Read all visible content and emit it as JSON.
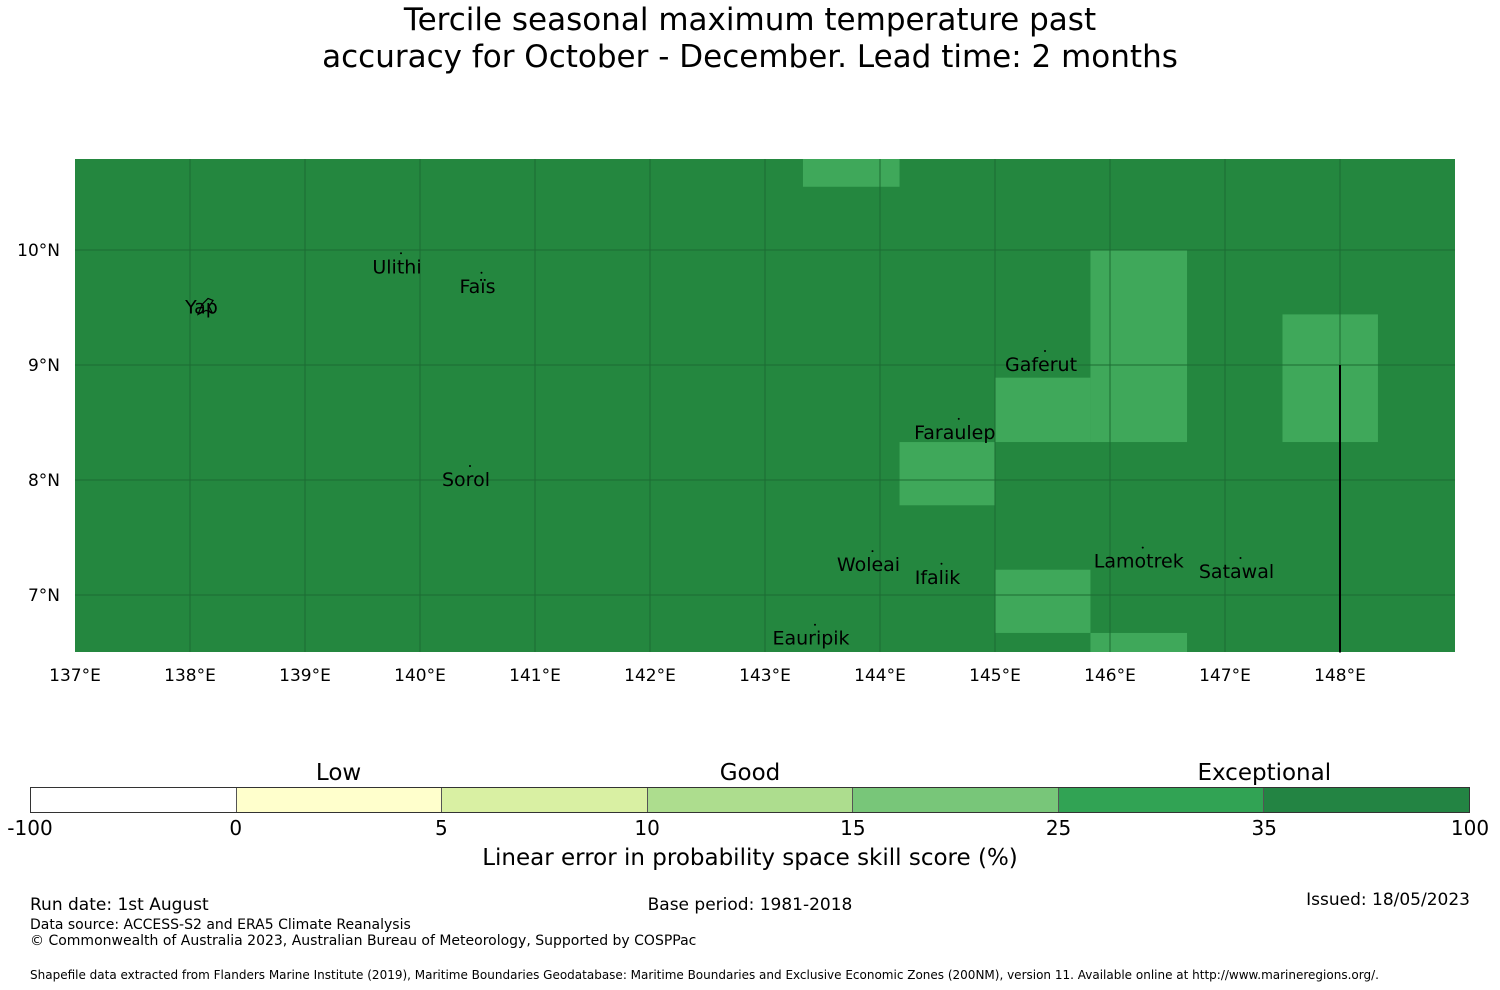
{
  "title": {
    "line1": "Tercile seasonal maximum temperature past",
    "line2": "accuracy for October - December. Lead time: 2 months"
  },
  "map": {
    "lon_range": [
      137,
      149
    ],
    "lat_range": [
      6.5,
      10.8
    ],
    "background_color": "#24873f",
    "highlight_color": "#3fa85a",
    "grid_color": "#1c6b33",
    "lon_ticks": [
      {
        "value": 137,
        "label": "137°E"
      },
      {
        "value": 138,
        "label": "138°E"
      },
      {
        "value": 139,
        "label": "139°E"
      },
      {
        "value": 140,
        "label": "140°E"
      },
      {
        "value": 141,
        "label": "141°E"
      },
      {
        "value": 142,
        "label": "142°E"
      },
      {
        "value": 143,
        "label": "143°E"
      },
      {
        "value": 144,
        "label": "144°E"
      },
      {
        "value": 145,
        "label": "145°E"
      },
      {
        "value": 146,
        "label": "146°E"
      },
      {
        "value": 147,
        "label": "147°E"
      },
      {
        "value": 148,
        "label": "148°E"
      }
    ],
    "lat_ticks": [
      {
        "value": 10,
        "label": "10°N"
      },
      {
        "value": 9,
        "label": "9°N"
      },
      {
        "value": 8,
        "label": "8°N"
      },
      {
        "value": 7,
        "label": "7°N"
      }
    ],
    "highlight_cells": [
      {
        "lon": [
          143.33,
          144.17
        ],
        "lat": [
          10.55,
          10.8
        ]
      },
      {
        "lon": [
          145.83,
          146.67
        ],
        "lat": [
          8.33,
          10.0
        ]
      },
      {
        "lon": [
          145.0,
          145.83
        ],
        "lat": [
          8.33,
          8.89
        ]
      },
      {
        "lon": [
          144.17,
          145.0
        ],
        "lat": [
          7.78,
          8.33
        ]
      },
      {
        "lon": [
          147.5,
          148.33
        ],
        "lat": [
          8.33,
          9.44
        ]
      },
      {
        "lon": [
          145.0,
          145.83
        ],
        "lat": [
          6.67,
          7.22
        ]
      },
      {
        "lon": [
          145.83,
          146.67
        ],
        "lat": [
          6.5,
          6.67
        ]
      }
    ],
    "boundary_line": {
      "lon": 148.0,
      "lat": [
        6.5,
        9.0
      ]
    },
    "places": [
      {
        "name": "Yap",
        "lon": 138.1,
        "lat": 9.5
      },
      {
        "name": "Ulithi",
        "lon": 139.8,
        "lat": 9.85
      },
      {
        "name": "Faïs",
        "lon": 140.5,
        "lat": 9.68
      },
      {
        "name": "Gaferut",
        "lon": 145.4,
        "lat": 9.0
      },
      {
        "name": "Faraulep",
        "lon": 144.65,
        "lat": 8.41
      },
      {
        "name": "Sorol",
        "lon": 140.4,
        "lat": 8.0
      },
      {
        "name": "Woleai",
        "lon": 143.9,
        "lat": 7.26
      },
      {
        "name": "Ifalik",
        "lon": 144.5,
        "lat": 7.15
      },
      {
        "name": "Lamotrek",
        "lon": 146.25,
        "lat": 7.29
      },
      {
        "name": "Satawal",
        "lon": 147.1,
        "lat": 7.2
      },
      {
        "name": "Eauripik",
        "lon": 143.4,
        "lat": 6.62
      }
    ]
  },
  "legend": {
    "categories": [
      {
        "label": "Low",
        "center": 2.5
      },
      {
        "label": "Good",
        "center": 12.5
      },
      {
        "label": "Exceptional",
        "center": 35.0
      }
    ],
    "bins": [
      "-100",
      "0",
      "5",
      "10",
      "15",
      "25",
      "35",
      "100"
    ],
    "colors": [
      "#ffffff",
      "#ffffcc",
      "#d9f0a3",
      "#addd8e",
      "#78c679",
      "#31a354",
      "#238443"
    ],
    "label": "Linear error in probability space skill score (%)"
  },
  "footer": {
    "run_date": "Run date: 1st August",
    "base_period": "Base period: 1981-2018",
    "issued": "Issued: 18/05/2023",
    "data_source": "Data source: ACCESS-S2 and ERA5 Climate Reanalysis",
    "copyright": "© Commonwealth of Australia 2023, Australian Bureau of Meteorology, Supported by COSPPac",
    "shapefile": "Shapefile data extracted from Flanders Marine Institute (2019), Maritime Boundaries Geodatabase: Maritime Boundaries and Exclusive Economic Zones (200NM), version 11. Available online at http://www.marineregions.org/."
  }
}
